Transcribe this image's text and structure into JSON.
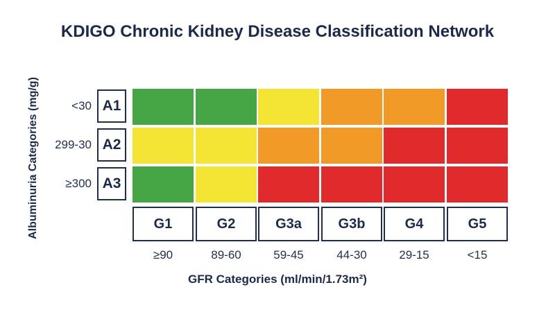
{
  "chart_data": {
    "type": "heatmap",
    "title": "KDIGO Chronic Kidney Disease Classification Network",
    "xlabel": "GFR Categories (ml/min/1.73m²)",
    "ylabel": "Albuminuria Categories (mg/g)",
    "columns": [
      {
        "category": "G1",
        "range": "≥90"
      },
      {
        "category": "G2",
        "range": "89-60"
      },
      {
        "category": "G3a",
        "range": "59-45"
      },
      {
        "category": "G3b",
        "range": "44-30"
      },
      {
        "category": "G4",
        "range": "29-15"
      },
      {
        "category": "G5",
        "range": "<15"
      }
    ],
    "rows": [
      {
        "category": "A1",
        "range": "<30"
      },
      {
        "category": "A2",
        "range": "299-30"
      },
      {
        "category": "A3",
        "range": "≥300"
      }
    ],
    "risk_levels": [
      [
        "green",
        "green",
        "yellow",
        "orange",
        "orange",
        "red"
      ],
      [
        "yellow",
        "yellow",
        "orange",
        "orange",
        "red",
        "red"
      ],
      [
        "green",
        "yellow",
        "red",
        "red",
        "red",
        "red"
      ]
    ],
    "colors": {
      "green": "#46a545",
      "yellow": "#f4e535",
      "orange": "#f29a27",
      "red": "#e02a2c"
    }
  }
}
